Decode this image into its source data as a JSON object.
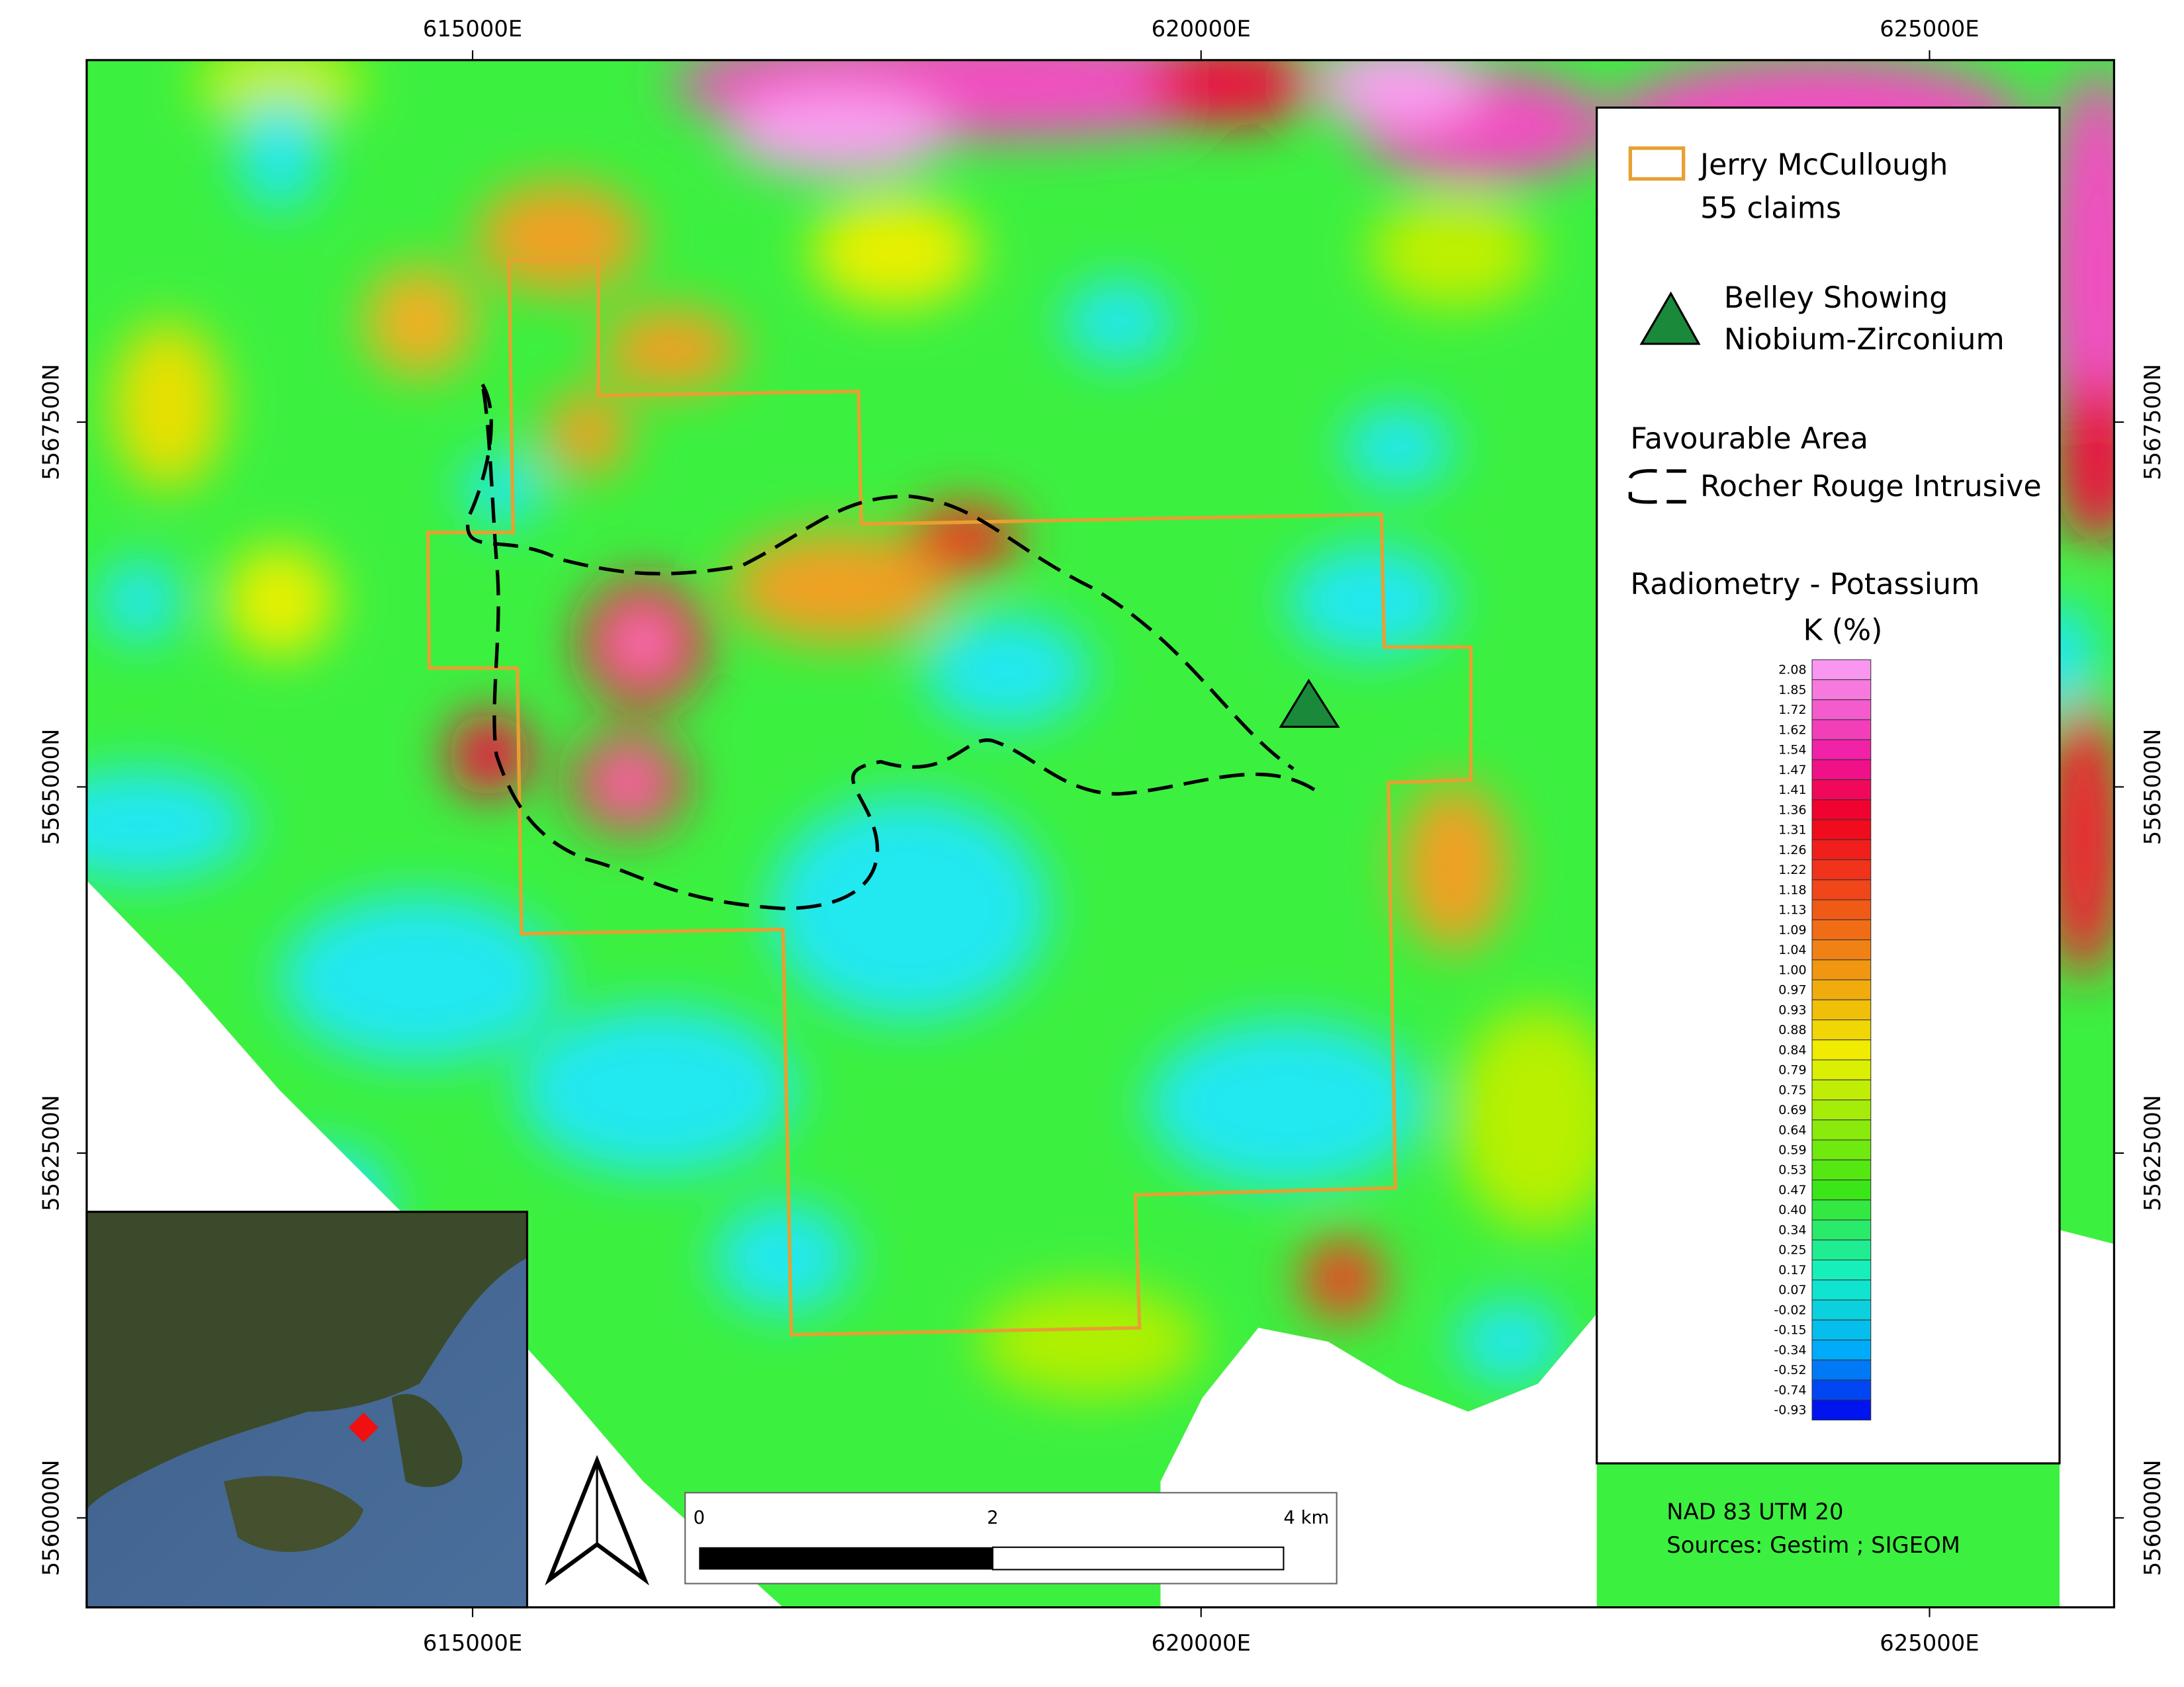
{
  "grid_labels": {
    "eastings": [
      "615000E",
      "620000E",
      "625000E"
    ],
    "northings": [
      "5567500N",
      "5565000N",
      "5562500N",
      "5560000N"
    ]
  },
  "legend": {
    "claims": {
      "line1": "Jerry McCullough",
      "line2": "55 claims"
    },
    "showing": {
      "line1": "Belley Showing",
      "line2": "Niobium-Zirconium"
    },
    "favourable": {
      "title": "Favourable Area",
      "item": "Rocher Rouge Intrusive"
    },
    "radiometry": {
      "title": "Radiometry - Potassium",
      "unit": "K (%)",
      "labels": [
        "2.08",
        "1.85",
        "1.72",
        "1.62",
        "1.54",
        "1.47",
        "1.41",
        "1.36",
        "1.31",
        "1.26",
        "1.22",
        "1.18",
        "1.13",
        "1.09",
        "1.04",
        "1.00",
        "0.97",
        "0.93",
        "0.88",
        "0.84",
        "0.79",
        "0.75",
        "0.69",
        "0.64",
        "0.59",
        "0.53",
        "0.47",
        "0.40",
        "0.34",
        "0.25",
        "0.17",
        "0.07",
        "-0.02",
        "-0.15",
        "-0.34",
        "-0.52",
        "-0.74",
        "-0.93"
      ]
    }
  },
  "scale_bar": {
    "labels": [
      "0",
      "2",
      "4 km"
    ]
  },
  "footer": {
    "datum": "NAD 83 UTM 20",
    "sources": "Sources: Gestim ; SIGEOM"
  }
}
